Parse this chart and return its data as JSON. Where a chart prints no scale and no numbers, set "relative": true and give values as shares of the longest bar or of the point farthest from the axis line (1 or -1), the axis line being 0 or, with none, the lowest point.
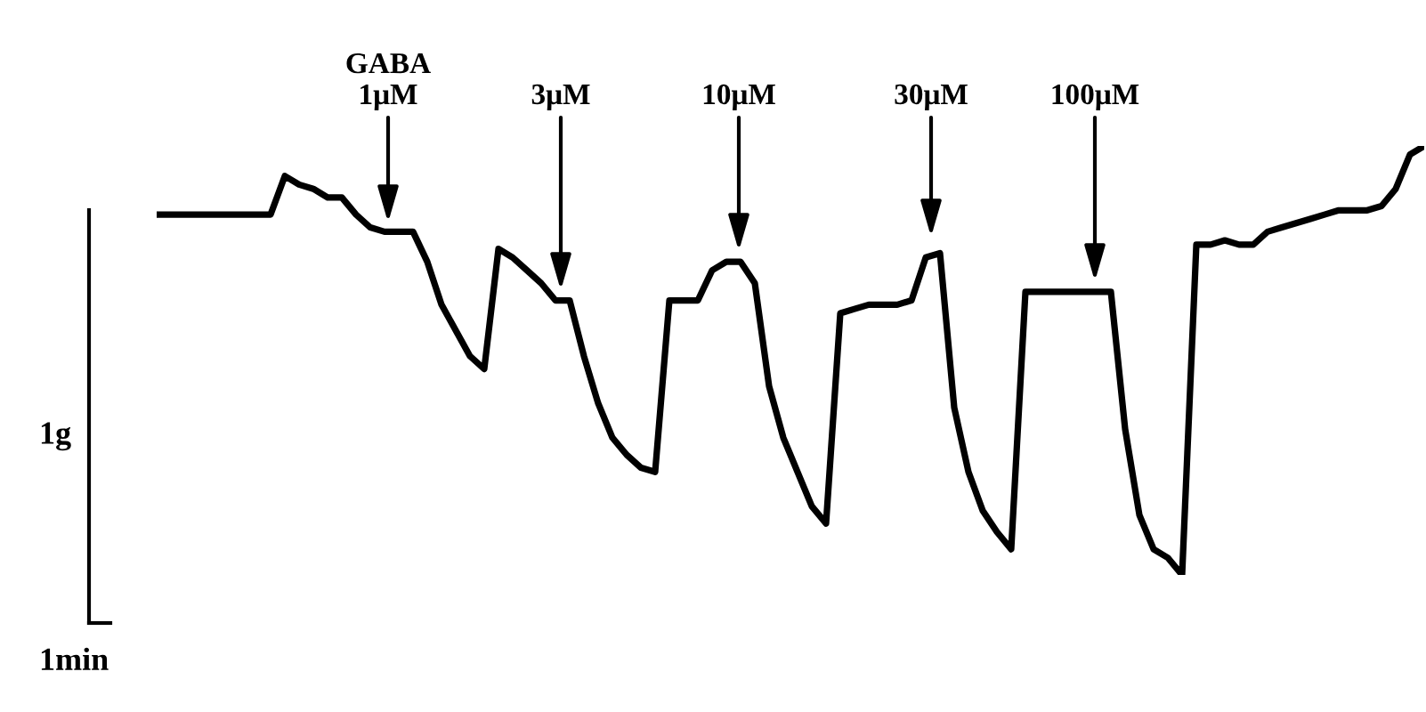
{
  "chart_data": {
    "type": "line",
    "relative": true,
    "tick_labels": false,
    "legend": false,
    "marker": "none",
    "line_style": "solid",
    "categories": [
      null,
      null,
      null,
      null,
      null,
      null,
      null,
      null,
      null,
      null,
      null,
      null,
      null,
      null,
      null,
      null,
      null,
      null,
      null,
      null,
      null,
      null,
      null,
      null,
      null,
      null,
      null,
      null,
      null,
      null,
      null,
      null,
      null,
      null,
      null,
      null,
      null,
      null,
      null,
      null,
      null,
      null,
      null,
      null,
      null,
      null,
      null,
      null,
      null,
      null,
      null,
      null,
      null,
      null,
      null,
      null,
      null,
      null,
      null,
      null,
      null,
      null,
      null,
      null,
      null,
      null,
      null,
      null,
      null,
      null,
      null,
      null,
      null,
      null,
      null,
      null,
      null,
      null,
      null,
      null,
      null,
      null,
      null,
      null,
      null,
      null,
      null,
      null,
      null,
      null
    ],
    "series": [
      {
        "color": "#000000",
        "values": [
          0.84,
          0.84,
          0.84,
          0.84,
          0.84,
          0.84,
          0.84,
          0.84,
          0.84,
          0.93,
          0.91,
          0.9,
          0.88,
          0.88,
          0.84,
          0.81,
          0.8,
          0.8,
          0.8,
          0.73,
          0.63,
          0.57,
          0.51,
          0.48,
          0.76,
          0.74,
          0.71,
          0.68,
          0.64,
          0.64,
          0.51,
          0.4,
          0.32,
          0.28,
          0.25,
          0.24,
          0.64,
          0.64,
          0.64,
          0.71,
          0.73,
          0.73,
          0.68,
          0.44,
          0.32,
          0.24,
          0.16,
          0.12,
          0.61,
          0.62,
          0.63,
          0.63,
          0.63,
          0.64,
          0.74,
          0.75,
          0.39,
          0.24,
          0.15,
          0.1,
          0.06,
          0.66,
          0.66,
          0.66,
          0.66,
          0.66,
          0.66,
          0.66,
          0.34,
          0.14,
          0.06,
          0.04,
          0.0,
          0.77,
          0.77,
          0.78,
          0.77,
          0.77,
          0.8,
          0.81,
          0.82,
          0.83,
          0.84,
          0.85,
          0.85,
          0.85,
          0.86,
          0.9,
          0.98,
          1.0
        ]
      }
    ],
    "annotations": [
      "GABA\n1μM",
      "3μM",
      "10μM",
      "30μM",
      "100μM",
      "1g",
      "1min"
    ]
  }
}
